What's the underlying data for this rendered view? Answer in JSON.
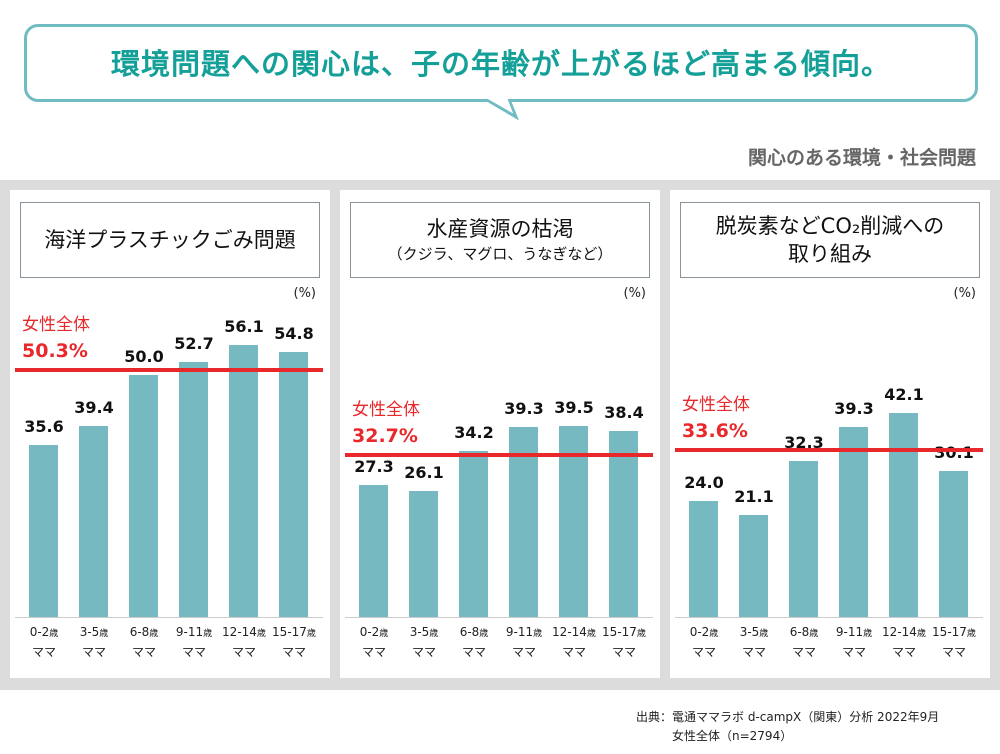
{
  "headline": "環境問題への関心は、子の年齢が上がるほど高まる傾向。",
  "subtitle": "関心のある環境・社会問題",
  "colors": {
    "bar": "#77b9c0",
    "average_line": "#e8282b",
    "headline": "#14a098",
    "bubble_border": "#6fbcc2"
  },
  "chart_data": [
    {
      "type": "bar",
      "title_lines": [
        "海洋プラスチックごみ問題"
      ],
      "title_sub": "",
      "unit": "(%)",
      "categories": [
        "0-2歳 ママ",
        "3-5歳 ママ",
        "6-8歳 ママ",
        "9-11歳 ママ",
        "12-14歳 ママ",
        "15-17歳 ママ"
      ],
      "values": [
        35.6,
        39.4,
        50.0,
        52.7,
        56.1,
        54.8
      ],
      "average": {
        "label": "女性全体",
        "value": 50.3,
        "value_label": "50.3%"
      }
    },
    {
      "type": "bar",
      "title_lines": [
        "水産資源の枯渇"
      ],
      "title_sub": "（クジラ、マグロ、うなぎなど）",
      "unit": "(%)",
      "categories": [
        "0-2歳 ママ",
        "3-5歳 ママ",
        "6-8歳 ママ",
        "9-11歳 ママ",
        "12-14歳 ママ",
        "15-17歳 ママ"
      ],
      "values": [
        27.3,
        26.1,
        34.2,
        39.3,
        39.5,
        38.4
      ],
      "average": {
        "label": "女性全体",
        "value": 32.7,
        "value_label": "32.7%"
      }
    },
    {
      "type": "bar",
      "title_lines": [
        "脱炭素などCO₂削減への",
        "取り組み"
      ],
      "title_sub": "",
      "unit": "(%)",
      "categories": [
        "0-2歳 ママ",
        "3-5歳 ママ",
        "6-8歳 ママ",
        "9-11歳 ママ",
        "12-14歳 ママ",
        "15-17歳 ママ"
      ],
      "values": [
        24.0,
        21.1,
        32.3,
        39.3,
        42.1,
        30.1
      ],
      "average": {
        "label": "女性全体",
        "value": 33.6,
        "value_label": "33.6%"
      }
    }
  ],
  "source": {
    "line1": "出典：電通ママラボ d-campX（関東）分析 2022年9月",
    "line2": "女性全体（n=2794）"
  }
}
